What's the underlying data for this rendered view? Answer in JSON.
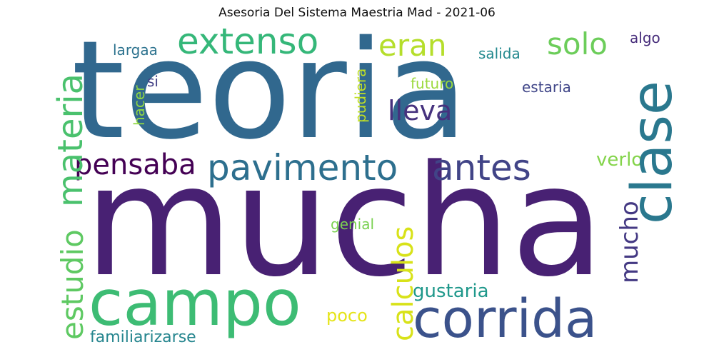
{
  "title": "Asesoria Del Sistema Maestria Mad - 2021-06",
  "words": [
    {
      "id": "teoria",
      "text": "teoria",
      "color": "#31688e",
      "orient": "h"
    },
    {
      "id": "mucha",
      "text": "mucha",
      "color": "#482173",
      "orient": "h"
    },
    {
      "id": "campo",
      "text": "campo",
      "color": "#3dbc74",
      "orient": "h"
    },
    {
      "id": "corrida",
      "text": "corrida",
      "color": "#3b528b",
      "orient": "h"
    },
    {
      "id": "clase",
      "text": "clase",
      "color": "#2a788e",
      "orient": "v"
    },
    {
      "id": "extenso",
      "text": "extenso",
      "color": "#35b779",
      "orient": "h"
    },
    {
      "id": "pavimento",
      "text": "pavimento",
      "color": "#2d6f8e",
      "orient": "h"
    },
    {
      "id": "antes",
      "text": "antes",
      "color": "#414487",
      "orient": "h"
    },
    {
      "id": "pensaba",
      "text": "pensaba",
      "color": "#440154",
      "orient": "h"
    },
    {
      "id": "materia",
      "text": "materia",
      "color": "#4ac16d",
      "orient": "v"
    },
    {
      "id": "estudio",
      "text": "estudio",
      "color": "#5ec962",
      "orient": "v"
    },
    {
      "id": "calculos",
      "text": "calculos",
      "color": "#d8e219",
      "orient": "v"
    },
    {
      "id": "mucho",
      "text": "mucho",
      "color": "#443983",
      "orient": "v"
    },
    {
      "id": "eran",
      "text": "eran",
      "color": "#b5de2b",
      "orient": "h"
    },
    {
      "id": "solo",
      "text": "solo",
      "color": "#6ccd5a",
      "orient": "h"
    },
    {
      "id": "lleva",
      "text": "lleva",
      "color": "#46327e",
      "orient": "h"
    },
    {
      "id": "gustaria",
      "text": "gustaria",
      "color": "#1f988b",
      "orient": "h"
    },
    {
      "id": "familiarizarse",
      "text": "familiarizarse",
      "color": "#25858e",
      "orient": "h"
    },
    {
      "id": "poco",
      "text": "poco",
      "color": "#e5e419",
      "orient": "h"
    },
    {
      "id": "genial",
      "text": "genial",
      "color": "#7ad151",
      "orient": "h"
    },
    {
      "id": "verlo",
      "text": "verlo",
      "color": "#84d44b",
      "orient": "h"
    },
    {
      "id": "largaa",
      "text": "largaa",
      "color": "#2c728e",
      "orient": "h"
    },
    {
      "id": "salida",
      "text": "salida",
      "color": "#23898e",
      "orient": "h"
    },
    {
      "id": "algo",
      "text": "algo",
      "color": "#472d7b",
      "orient": "h"
    },
    {
      "id": "estaria",
      "text": "estaria",
      "color": "#404688",
      "orient": "h"
    },
    {
      "id": "futuro",
      "text": "futuro",
      "color": "#9bd93c",
      "orient": "h"
    },
    {
      "id": "pudiera",
      "text": "pudiera",
      "color": "#c0df25",
      "orient": "v"
    },
    {
      "id": "si",
      "text": "si",
      "color": "#424086",
      "orient": "h"
    },
    {
      "id": "hacer",
      "text": "hacer",
      "color": "#90d743",
      "orient": "v"
    }
  ]
}
